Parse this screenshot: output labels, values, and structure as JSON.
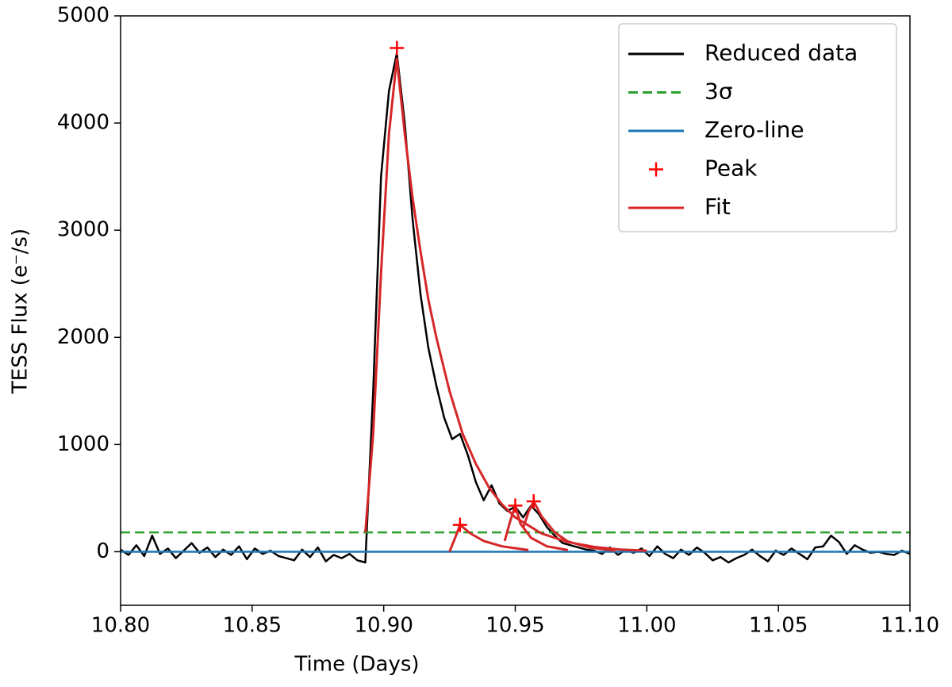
{
  "chart_data": {
    "type": "line",
    "xlabel": "Time (Days)",
    "ylabel": "TESS Flux (e⁻/s)",
    "xlim": [
      10.8,
      11.1
    ],
    "xticks": [
      {
        "value": 10.8,
        "label": "10.80"
      },
      {
        "value": 10.85,
        "label": "10.85"
      },
      {
        "value": 10.9,
        "label": "10.90"
      },
      {
        "value": 10.95,
        "label": "10.95"
      },
      {
        "value": 11.0,
        "label": "11.00"
      },
      {
        "value": 11.05,
        "label": "11.05"
      },
      {
        "value": 11.1,
        "label": "11.10"
      }
    ],
    "ylim": [
      -500,
      5000
    ],
    "yticks": [
      0,
      1000,
      2000,
      3000,
      4000,
      5000
    ],
    "legend": "upper right",
    "series": [
      {
        "name": "Reduced data",
        "color": "#000000",
        "style": "solid",
        "x": [
          10.8,
          10.803,
          10.806,
          10.809,
          10.812,
          10.815,
          10.818,
          10.821,
          10.824,
          10.827,
          10.83,
          10.833,
          10.836,
          10.839,
          10.842,
          10.845,
          10.848,
          10.851,
          10.854,
          10.857,
          10.86,
          10.863,
          10.866,
          10.869,
          10.872,
          10.875,
          10.878,
          10.881,
          10.884,
          10.887,
          10.89,
          10.893,
          10.896,
          10.899,
          10.902,
          10.905,
          10.908,
          10.911,
          10.914,
          10.917,
          10.92,
          10.923,
          10.926,
          10.929,
          10.932,
          10.935,
          10.938,
          10.941,
          10.944,
          10.947,
          10.95,
          10.953,
          10.956,
          10.959,
          10.962,
          10.965,
          10.968,
          10.971,
          10.974,
          10.977,
          10.98,
          10.983,
          10.986,
          10.989,
          10.992,
          10.995,
          10.998,
          11.001,
          11.004,
          11.007,
          11.01,
          11.013,
          11.016,
          11.019,
          11.022,
          11.025,
          11.028,
          11.031,
          11.034,
          11.037,
          11.04,
          11.043,
          11.046,
          11.049,
          11.052,
          11.055,
          11.058,
          11.061,
          11.064,
          11.067,
          11.07,
          11.073,
          11.076,
          11.079,
          11.082,
          11.085,
          11.088,
          11.091,
          11.094,
          11.097,
          11.1
        ],
        "values": [
          20,
          -30,
          60,
          -40,
          150,
          -20,
          30,
          -60,
          10,
          80,
          -10,
          40,
          -50,
          20,
          -30,
          50,
          -70,
          30,
          -20,
          10,
          -40,
          -60,
          -80,
          20,
          -50,
          40,
          -90,
          -30,
          -60,
          -20,
          -80,
          -100,
          1500,
          3500,
          4300,
          4650,
          4000,
          3100,
          2400,
          1900,
          1550,
          1250,
          1050,
          1100,
          900,
          650,
          480,
          620,
          450,
          380,
          420,
          320,
          430,
          350,
          230,
          150,
          80,
          60,
          40,
          20,
          10,
          -20,
          40,
          -30,
          20,
          -10,
          30,
          -40,
          50,
          -20,
          -60,
          20,
          -30,
          40,
          -10,
          -80,
          -50,
          -100,
          -60,
          -30,
          20,
          -40,
          -90,
          10,
          -30,
          30,
          -20,
          -70,
          40,
          50,
          150,
          90,
          -20,
          60,
          20,
          -10,
          0,
          -20,
          -30,
          10,
          -20
        ]
      },
      {
        "name": "3σ",
        "color": "#2ca02c",
        "style": "dashed",
        "x": [
          10.8,
          11.1
        ],
        "values": [
          180,
          180
        ]
      },
      {
        "name": "Zero-line",
        "color": "#1f77b4",
        "style": "solid",
        "x": [
          10.8,
          11.1
        ],
        "values": [
          0,
          0
        ]
      },
      {
        "name": "Peak",
        "color": "#ff0000",
        "style": "marker",
        "x": [
          10.905,
          10.929,
          10.95,
          10.957
        ],
        "values": [
          4700,
          250,
          430,
          470
        ]
      },
      {
        "name": "Fit",
        "color": "#d62728",
        "style": "solid",
        "x": [
          10.893,
          10.896,
          10.899,
          10.902,
          10.905,
          10.908,
          10.911,
          10.914,
          10.917,
          10.92,
          10.925,
          10.93,
          10.935,
          10.94,
          10.945,
          10.95,
          10.96,
          10.97,
          10.98,
          10.99,
          11.0,
          null,
          10.925,
          10.927,
          10.929,
          10.933,
          10.938,
          10.945,
          10.955,
          null,
          10.946,
          10.948,
          10.95,
          10.952,
          10.956,
          10.962,
          10.97,
          null,
          10.953,
          10.955,
          10.957,
          10.96,
          10.965,
          10.97,
          10.978,
          10.988
        ],
        "values": [
          180,
          1100,
          2600,
          3900,
          4600,
          3900,
          3300,
          2800,
          2350,
          2000,
          1500,
          1100,
          820,
          600,
          440,
          320,
          170,
          90,
          45,
          20,
          10,
          null,
          0,
          120,
          250,
          170,
          100,
          50,
          15,
          null,
          100,
          280,
          430,
          260,
          130,
          50,
          15,
          null,
          220,
          370,
          470,
          330,
          180,
          95,
          40,
          10
        ]
      }
    ]
  }
}
